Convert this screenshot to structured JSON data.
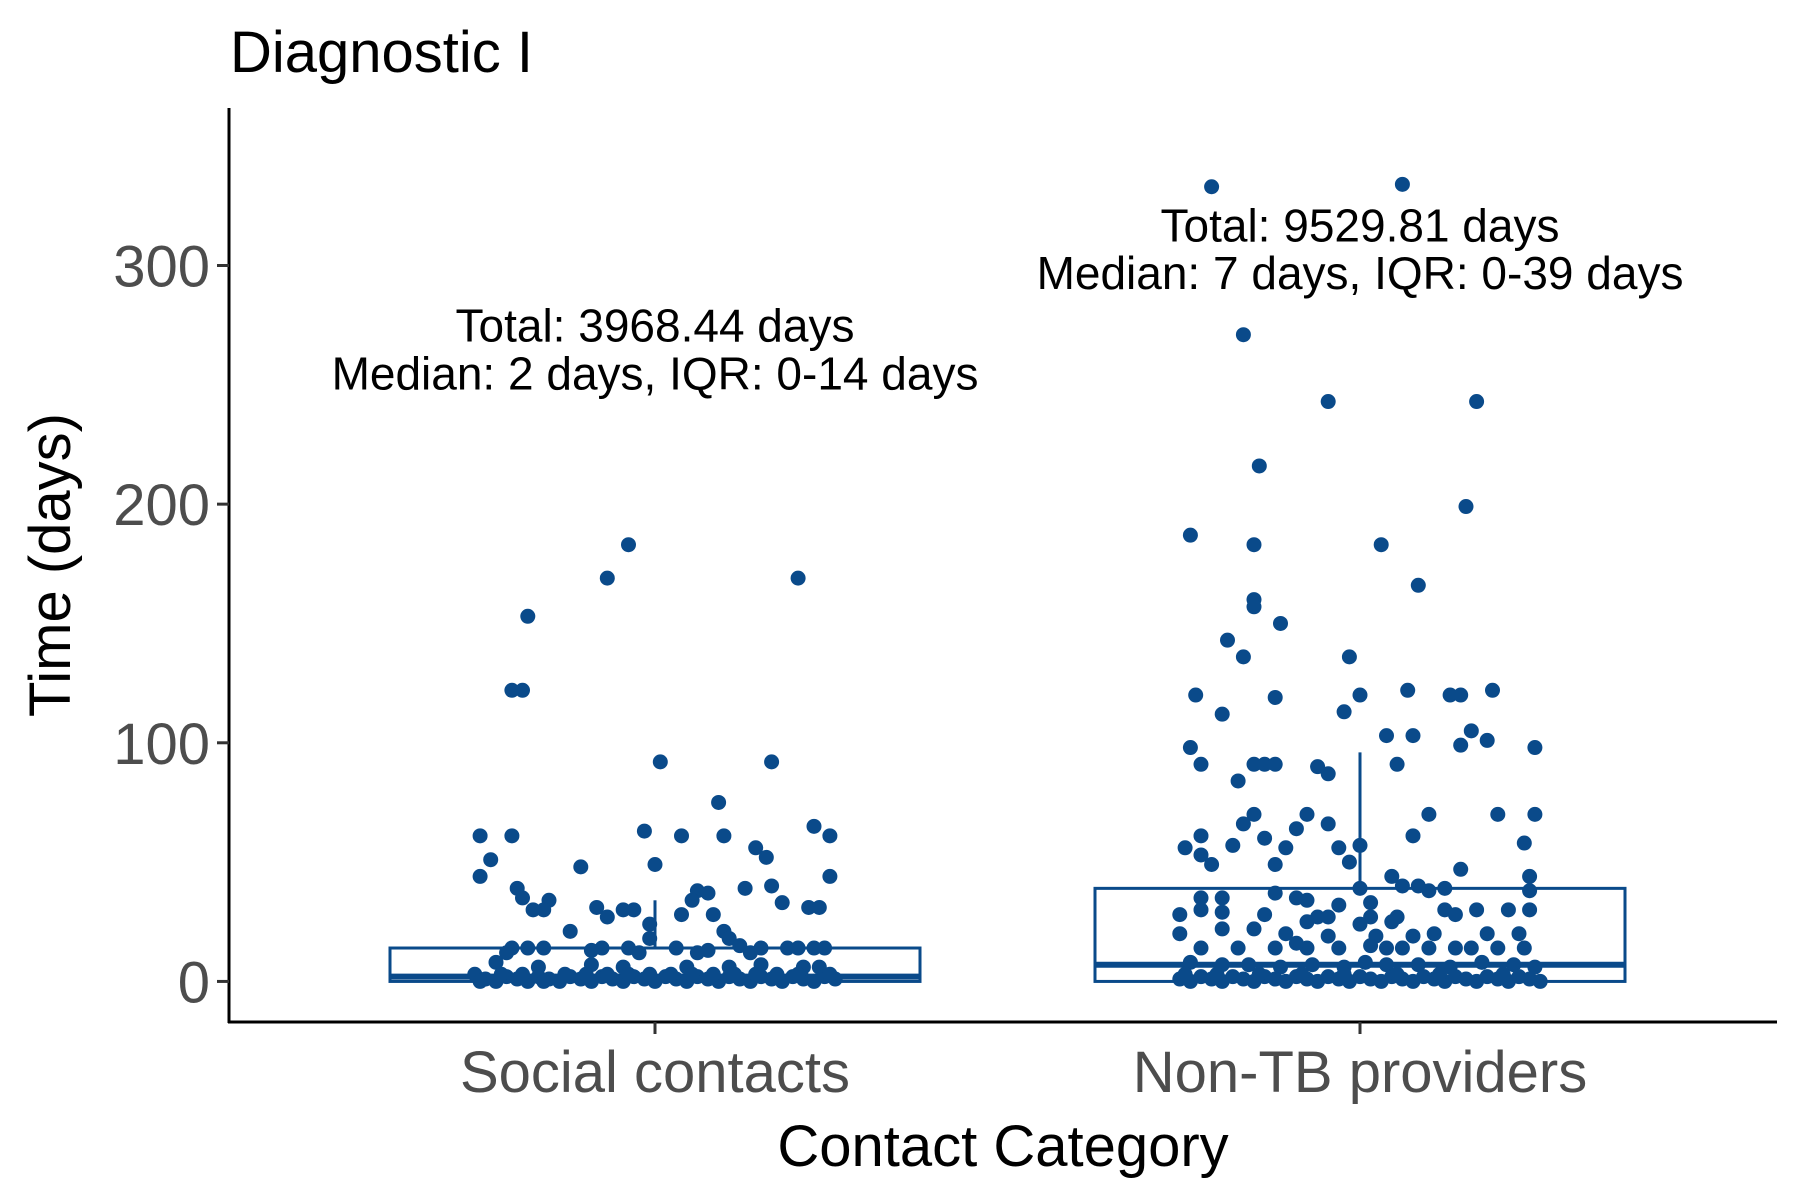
{
  "chart_data": {
    "type": "box",
    "title": "Diagnostic I",
    "xlabel": "Contact Category",
    "ylabel": "Time (days)",
    "ylim": [
      -17,
      366
    ],
    "yticks": [
      0,
      100,
      200,
      300
    ],
    "grid": false,
    "legend": "none",
    "color": "#0a4a8a",
    "categories": [
      "Social contacts",
      "Non-TB providers"
    ],
    "boxes": [
      {
        "category": "Social contacts",
        "q1": 0,
        "median": 2,
        "q3": 14,
        "whisker_low": 0,
        "whisker_high": 34,
        "annotation": [
          "Total: 3968.44 days",
          "Median: 2 days,  IQR: 0-14 days"
        ],
        "points": [
          [
            -0.05,
            183
          ],
          [
            -0.09,
            169
          ],
          [
            0.27,
            169
          ],
          [
            -0.24,
            153
          ],
          [
            -0.27,
            122
          ],
          [
            -0.25,
            122
          ],
          [
            0.01,
            92
          ],
          [
            0.22,
            92
          ],
          [
            0.12,
            75
          ],
          [
            -0.33,
            61
          ],
          [
            -0.27,
            61
          ],
          [
            0.05,
            61
          ],
          [
            0.13,
            61
          ],
          [
            0.3,
            65
          ],
          [
            0.33,
            61
          ],
          [
            -0.02,
            63
          ],
          [
            0.19,
            56
          ],
          [
            0.21,
            52
          ],
          [
            -0.31,
            51
          ],
          [
            -0.14,
            48
          ],
          [
            0.0,
            49
          ],
          [
            -0.33,
            44
          ],
          [
            0.33,
            44
          ],
          [
            -0.26,
            39
          ],
          [
            0.22,
            40
          ],
          [
            0.17,
            39
          ],
          [
            -0.25,
            35
          ],
          [
            -0.2,
            34
          ],
          [
            0.1,
            37
          ],
          [
            0.08,
            38
          ],
          [
            0.07,
            34
          ],
          [
            -0.11,
            31
          ],
          [
            -0.06,
            30
          ],
          [
            -0.04,
            30
          ],
          [
            0.29,
            31
          ],
          [
            0.31,
            31
          ],
          [
            0.24,
            33
          ],
          [
            0.05,
            28
          ],
          [
            -0.09,
            27
          ],
          [
            -0.01,
            24
          ],
          [
            -0.16,
            21
          ],
          [
            0.13,
            21
          ],
          [
            0.11,
            28
          ],
          [
            -0.23,
            30
          ],
          [
            -0.21,
            30
          ],
          [
            -0.01,
            18
          ],
          [
            0.14,
            18
          ],
          [
            0.16,
            15
          ],
          [
            -0.27,
            14
          ],
          [
            -0.24,
            14
          ],
          [
            -0.21,
            14
          ],
          [
            -0.1,
            14
          ],
          [
            0.04,
            14
          ],
          [
            0.27,
            14
          ],
          [
            0.32,
            14
          ],
          [
            0.18,
            12
          ],
          [
            -0.05,
            14
          ],
          [
            -0.03,
            12
          ],
          [
            0.2,
            14
          ],
          [
            0.25,
            14
          ],
          [
            0.3,
            14
          ],
          [
            -0.28,
            12
          ],
          [
            -0.12,
            13
          ],
          [
            0.08,
            12
          ],
          [
            0.1,
            13
          ],
          [
            -0.3,
            8
          ],
          [
            -0.22,
            6
          ],
          [
            -0.12,
            7
          ],
          [
            -0.06,
            6
          ],
          [
            0.06,
            6
          ],
          [
            0.14,
            6
          ],
          [
            0.2,
            7
          ],
          [
            0.28,
            6
          ],
          [
            0.31,
            6
          ],
          [
            -0.34,
            3
          ],
          [
            -0.32,
            1
          ],
          [
            -0.3,
            0
          ],
          [
            -0.28,
            2
          ],
          [
            -0.26,
            1
          ],
          [
            -0.24,
            0
          ],
          [
            -0.22,
            2
          ],
          [
            -0.2,
            1
          ],
          [
            -0.18,
            0
          ],
          [
            -0.16,
            2
          ],
          [
            -0.14,
            1
          ],
          [
            -0.12,
            0
          ],
          [
            -0.1,
            2
          ],
          [
            -0.08,
            1
          ],
          [
            -0.06,
            0
          ],
          [
            -0.04,
            2
          ],
          [
            -0.02,
            1
          ],
          [
            0.0,
            0
          ],
          [
            0.02,
            2
          ],
          [
            0.04,
            1
          ],
          [
            0.06,
            0
          ],
          [
            0.08,
            2
          ],
          [
            0.1,
            1
          ],
          [
            0.12,
            0
          ],
          [
            0.14,
            2
          ],
          [
            0.16,
            1
          ],
          [
            0.18,
            0
          ],
          [
            0.2,
            2
          ],
          [
            0.22,
            1
          ],
          [
            0.24,
            0
          ],
          [
            0.26,
            2
          ],
          [
            0.28,
            1
          ],
          [
            0.3,
            0
          ],
          [
            0.32,
            2
          ],
          [
            0.34,
            1
          ],
          [
            -0.33,
            0
          ],
          [
            -0.29,
            3
          ],
          [
            -0.25,
            3
          ],
          [
            -0.21,
            0
          ],
          [
            -0.17,
            3
          ],
          [
            -0.13,
            3
          ],
          [
            -0.09,
            3
          ],
          [
            -0.05,
            3
          ],
          [
            -0.01,
            3
          ],
          [
            0.03,
            3
          ],
          [
            0.07,
            3
          ],
          [
            0.11,
            3
          ],
          [
            0.15,
            3
          ],
          [
            0.19,
            3
          ],
          [
            0.23,
            3
          ],
          [
            0.27,
            3
          ],
          [
            0.33,
            3
          ]
        ]
      },
      {
        "category": "Non-TB providers",
        "q1": 0,
        "median": 7,
        "q3": 39,
        "whisker_low": 0,
        "whisker_high": 96,
        "annotation": [
          "Total: 9529.81 days",
          "Median: 7 days,  IQR: 0-39 days"
        ],
        "points": [
          [
            -0.28,
            333
          ],
          [
            0.08,
            334
          ],
          [
            -0.22,
            271
          ],
          [
            -0.06,
            243
          ],
          [
            0.22,
            243
          ],
          [
            -0.19,
            216
          ],
          [
            0.2,
            199
          ],
          [
            -0.32,
            187
          ],
          [
            -0.2,
            183
          ],
          [
            0.04,
            183
          ],
          [
            -0.2,
            160
          ],
          [
            -0.2,
            157
          ],
          [
            0.11,
            166
          ],
          [
            -0.15,
            150
          ],
          [
            -0.25,
            143
          ],
          [
            -0.22,
            136
          ],
          [
            -0.02,
            136
          ],
          [
            -0.31,
            120
          ],
          [
            -0.26,
            112
          ],
          [
            -0.16,
            119
          ],
          [
            0.0,
            120
          ],
          [
            0.09,
            122
          ],
          [
            0.17,
            120
          ],
          [
            0.19,
            120
          ],
          [
            0.25,
            122
          ],
          [
            -0.03,
            113
          ],
          [
            -0.32,
            98
          ],
          [
            -0.3,
            91
          ],
          [
            -0.2,
            91
          ],
          [
            -0.18,
            91
          ],
          [
            -0.16,
            91
          ],
          [
            0.05,
            103
          ],
          [
            0.07,
            91
          ],
          [
            0.1,
            103
          ],
          [
            0.19,
            99
          ],
          [
            0.21,
            105
          ],
          [
            0.24,
            101
          ],
          [
            0.33,
            98
          ],
          [
            -0.06,
            87
          ],
          [
            -0.08,
            90
          ],
          [
            -0.23,
            84
          ],
          [
            -0.2,
            70
          ],
          [
            -0.1,
            70
          ],
          [
            0.13,
            70
          ],
          [
            0.26,
            70
          ],
          [
            -0.3,
            61
          ],
          [
            -0.33,
            56
          ],
          [
            -0.3,
            53
          ],
          [
            -0.22,
            66
          ],
          [
            -0.18,
            60
          ],
          [
            -0.14,
            56
          ],
          [
            -0.24,
            57
          ],
          [
            -0.12,
            64
          ],
          [
            -0.06,
            66
          ],
          [
            0.0,
            57
          ],
          [
            0.1,
            61
          ],
          [
            0.31,
            58
          ],
          [
            0.33,
            70
          ],
          [
            -0.28,
            49
          ],
          [
            -0.16,
            49
          ],
          [
            -0.04,
            56
          ],
          [
            -0.02,
            50
          ],
          [
            0.19,
            47
          ],
          [
            0.32,
            44
          ],
          [
            0.06,
            44
          ],
          [
            0.08,
            40
          ],
          [
            0.11,
            40
          ],
          [
            -0.3,
            35
          ],
          [
            -0.26,
            35
          ],
          [
            -0.16,
            37
          ],
          [
            -0.12,
            35
          ],
          [
            0.0,
            39
          ],
          [
            0.13,
            38
          ],
          [
            0.16,
            39
          ],
          [
            0.32,
            38
          ],
          [
            -0.1,
            34
          ],
          [
            -0.04,
            32
          ],
          [
            0.02,
            33
          ],
          [
            -0.34,
            28
          ],
          [
            -0.3,
            30
          ],
          [
            -0.26,
            29
          ],
          [
            -0.18,
            28
          ],
          [
            -0.08,
            27
          ],
          [
            -0.06,
            27
          ],
          [
            0.02,
            27
          ],
          [
            0.07,
            27
          ],
          [
            0.16,
            30
          ],
          [
            0.18,
            28
          ],
          [
            0.22,
            30
          ],
          [
            0.28,
            30
          ],
          [
            0.32,
            30
          ],
          [
            -0.1,
            25
          ],
          [
            0.0,
            24
          ],
          [
            0.06,
            25
          ],
          [
            -0.34,
            20
          ],
          [
            -0.26,
            22
          ],
          [
            -0.2,
            22
          ],
          [
            -0.14,
            20
          ],
          [
            -0.06,
            19
          ],
          [
            0.03,
            19
          ],
          [
            0.1,
            19
          ],
          [
            0.14,
            20
          ],
          [
            0.24,
            20
          ],
          [
            0.3,
            20
          ],
          [
            -0.3,
            14
          ],
          [
            -0.23,
            14
          ],
          [
            -0.16,
            14
          ],
          [
            -0.1,
            14
          ],
          [
            -0.04,
            14
          ],
          [
            0.05,
            14
          ],
          [
            0.08,
            14
          ],
          [
            0.13,
            14
          ],
          [
            0.18,
            14
          ],
          [
            0.21,
            14
          ],
          [
            0.26,
            14
          ],
          [
            0.31,
            14
          ],
          [
            -0.12,
            16
          ],
          [
            0.02,
            15
          ],
          [
            -0.32,
            8
          ],
          [
            -0.26,
            7
          ],
          [
            -0.21,
            7
          ],
          [
            -0.15,
            6
          ],
          [
            -0.09,
            7
          ],
          [
            -0.03,
            6
          ],
          [
            0.01,
            8
          ],
          [
            0.05,
            7
          ],
          [
            0.11,
            7
          ],
          [
            0.17,
            6
          ],
          [
            0.23,
            8
          ],
          [
            0.29,
            7
          ],
          [
            0.33,
            6
          ],
          [
            -0.34,
            1
          ],
          [
            -0.32,
            0
          ],
          [
            -0.3,
            2
          ],
          [
            -0.28,
            1
          ],
          [
            -0.26,
            0
          ],
          [
            -0.24,
            2
          ],
          [
            -0.22,
            1
          ],
          [
            -0.2,
            0
          ],
          [
            -0.18,
            2
          ],
          [
            -0.16,
            1
          ],
          [
            -0.14,
            0
          ],
          [
            -0.12,
            2
          ],
          [
            -0.1,
            1
          ],
          [
            -0.08,
            0
          ],
          [
            -0.06,
            2
          ],
          [
            -0.04,
            1
          ],
          [
            -0.02,
            0
          ],
          [
            0.0,
            2
          ],
          [
            0.02,
            1
          ],
          [
            0.04,
            0
          ],
          [
            0.06,
            2
          ],
          [
            0.08,
            1
          ],
          [
            0.1,
            0
          ],
          [
            0.12,
            2
          ],
          [
            0.14,
            1
          ],
          [
            0.16,
            0
          ],
          [
            0.18,
            2
          ],
          [
            0.2,
            1
          ],
          [
            0.22,
            0
          ],
          [
            0.24,
            2
          ],
          [
            0.26,
            1
          ],
          [
            0.28,
            0
          ],
          [
            0.3,
            2
          ],
          [
            0.32,
            1
          ],
          [
            0.34,
            0
          ],
          [
            -0.33,
            3
          ],
          [
            -0.27,
            3
          ],
          [
            -0.19,
            3
          ],
          [
            -0.11,
            3
          ],
          [
            -0.03,
            3
          ],
          [
            0.07,
            3
          ],
          [
            0.15,
            3
          ],
          [
            0.27,
            3
          ]
        ]
      }
    ]
  }
}
